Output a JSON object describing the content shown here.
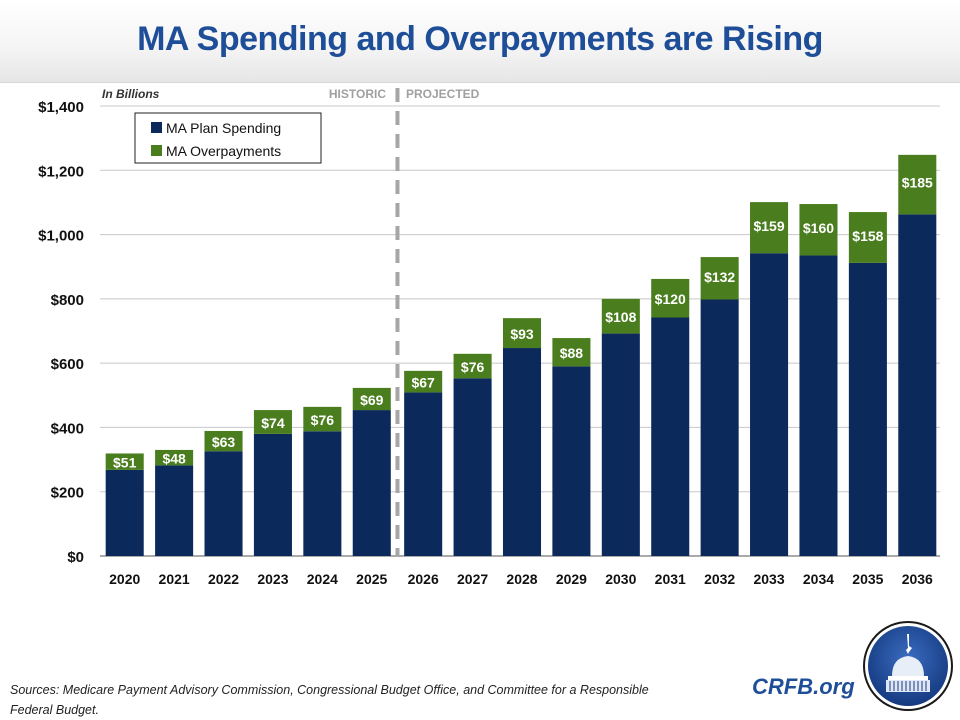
{
  "header": {
    "title": "MA Spending and Overpayments are Rising"
  },
  "chart_data": {
    "type": "bar",
    "stacked": true,
    "title": "MA Spending and Overpayments are Rising",
    "unit_label": "In Billions",
    "period_labels": {
      "historic": "HISTORIC",
      "projected": "PROJECTED"
    },
    "divider_between": [
      "2025",
      "2026"
    ],
    "categories": [
      "2020",
      "2021",
      "2022",
      "2023",
      "2024",
      "2025",
      "2026",
      "2027",
      "2028",
      "2029",
      "2030",
      "2031",
      "2032",
      "2033",
      "2034",
      "2035",
      "2036"
    ],
    "series": [
      {
        "name": "MA Plan Spending",
        "color": "#0b2a5b",
        "values": [
          268,
          282,
          326,
          380,
          388,
          454,
          509,
          553,
          647,
          590,
          692,
          742,
          798,
          942,
          935,
          912,
          1063
        ]
      },
      {
        "name": "MA Overpayments",
        "color": "#4a7d1d",
        "values": [
          51,
          48,
          63,
          74,
          76,
          69,
          67,
          76,
          93,
          88,
          108,
          120,
          132,
          159,
          160,
          158,
          185
        ],
        "data_labels": [
          "$51",
          "$48",
          "$63",
          "$74",
          "$76",
          "$69",
          "$67",
          "$76",
          "$93",
          "$88",
          "$108",
          "$120",
          "$132",
          "$159",
          "$160",
          "$158",
          "$185"
        ]
      }
    ],
    "ylim": [
      0,
      1400
    ],
    "yticks": [
      0,
      200,
      400,
      600,
      800,
      1000,
      1200,
      1400
    ],
    "ytick_labels": [
      "$0",
      "$200",
      "$400",
      "$600",
      "$800",
      "$1,000",
      "$1,200",
      "$1,400"
    ],
    "xlabel": "",
    "ylabel": "",
    "grid": true,
    "legend_position": "top-left"
  },
  "footer": {
    "sources": "Sources: Medicare Payment Advisory Commission, Congressional Budget Office, and Committee for a Responsible Federal Budget.",
    "brand": "CRFB.org",
    "logo_icon": "capitol-dome-icon"
  },
  "colors": {
    "title": "#1f4e99",
    "plan": "#0b2a5b",
    "overpay": "#4a7d1d",
    "grid": "#c8c8c8",
    "divider": "#a6a6a6"
  }
}
